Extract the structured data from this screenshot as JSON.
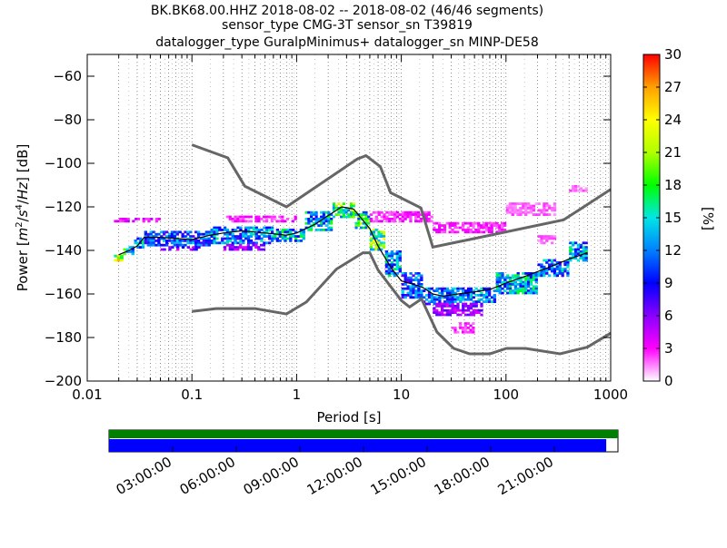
{
  "title_lines": [
    "BK.BK68.00.HHZ   2018-08-02 -- 2018-08-02  (46/46 segments)",
    "sensor_type CMG-3T sensor_sn T39819",
    "datalogger_type GuralpMinimus+ datalogger_sn MINP-DE58"
  ],
  "chart_data": {
    "type": "heatmap",
    "xlabel": "Period [s]",
    "ylabel": "Power [m²/s⁴/Hz] [dB]",
    "ylabel_parts": {
      "prefix": "Power [",
      "unit_m": "m",
      "exp_m": "2",
      "slash1": "/",
      "unit_s": "s",
      "exp_s": "4",
      "slash2": "/",
      "unit_hz": "Hz",
      "suffix": "] [dB]"
    },
    "x_scale": "log",
    "xlim": [
      0.01,
      1000
    ],
    "ylim": [
      -200,
      -50
    ],
    "x_ticks": [
      {
        "value": 0.01,
        "label": "0.01"
      },
      {
        "value": 0.1,
        "label": "0.1"
      },
      {
        "value": 1,
        "label": "1"
      },
      {
        "value": 10,
        "label": "10"
      },
      {
        "value": 100,
        "label": "100"
      },
      {
        "value": 1000,
        "label": "1000"
      }
    ],
    "y_ticks": [
      {
        "value": -60,
        "label": "−60"
      },
      {
        "value": -80,
        "label": "−80"
      },
      {
        "value": -100,
        "label": "−100"
      },
      {
        "value": -120,
        "label": "−120"
      },
      {
        "value": -140,
        "label": "−140"
      },
      {
        "value": -160,
        "label": "−160"
      },
      {
        "value": -180,
        "label": "−180"
      },
      {
        "value": -200,
        "label": "−200"
      }
    ],
    "grid": "dotted vertical at period bins",
    "colorbar": {
      "label": "[%]",
      "range": [
        0,
        30
      ],
      "ticks": [
        {
          "value": 0,
          "label": "0"
        },
        {
          "value": 3,
          "label": "3"
        },
        {
          "value": 6,
          "label": "6"
        },
        {
          "value": 9,
          "label": "9"
        },
        {
          "value": 12,
          "label": "12"
        },
        {
          "value": 15,
          "label": "15"
        },
        {
          "value": 18,
          "label": "18"
        },
        {
          "value": 21,
          "label": "21"
        },
        {
          "value": 24,
          "label": "24"
        },
        {
          "value": 27,
          "label": "27"
        },
        {
          "value": 30,
          "label": "30"
        }
      ],
      "colors": [
        "#ffffff",
        "#ff00ff",
        "#8a00ff",
        "#0000ff",
        "#0080ff",
        "#00e6e6",
        "#00ff00",
        "#b0ff00",
        "#ffff00",
        "#ffa000",
        "#ff0000"
      ]
    },
    "noise_model_high": [
      [
        0.1,
        -91.5
      ],
      [
        0.22,
        -97.5
      ],
      [
        0.32,
        -110.5
      ],
      [
        0.8,
        -120
      ],
      [
        3.8,
        -98
      ],
      [
        4.6,
        -96.5
      ],
      [
        6.3,
        -101.5
      ],
      [
        7.9,
        -113.5
      ],
      [
        15.4,
        -120.5
      ],
      [
        20,
        -138.5
      ],
      [
        354.8,
        -126
      ],
      [
        1000,
        -112
      ]
    ],
    "noise_model_low": [
      [
        0.1,
        -168
      ],
      [
        0.17,
        -166.7
      ],
      [
        0.4,
        -166.7
      ],
      [
        0.8,
        -169.2
      ],
      [
        1.24,
        -163.7
      ],
      [
        2.4,
        -148.6
      ],
      [
        4.3,
        -141.1
      ],
      [
        5,
        -141.1
      ],
      [
        6,
        -149
      ],
      [
        10,
        -163
      ],
      [
        12,
        -166
      ],
      [
        15.6,
        -162.3
      ],
      [
        21.9,
        -177.5
      ],
      [
        31.6,
        -185
      ],
      [
        45,
        -187.5
      ],
      [
        70,
        -187.5
      ],
      [
        101,
        -185
      ],
      [
        154,
        -185
      ],
      [
        328,
        -187.5
      ],
      [
        600,
        -184.4
      ],
      [
        1000,
        -178
      ]
    ],
    "mode_curve": [
      [
        0.02,
        -142
      ],
      [
        0.025,
        -140
      ],
      [
        0.03,
        -138
      ],
      [
        0.035,
        -134
      ],
      [
        0.05,
        -134
      ],
      [
        0.1,
        -135
      ],
      [
        0.15,
        -133
      ],
      [
        0.2,
        -132
      ],
      [
        0.3,
        -131
      ],
      [
        0.5,
        -132
      ],
      [
        0.8,
        -133
      ],
      [
        1,
        -132
      ],
      [
        1.5,
        -128
      ],
      [
        2,
        -124
      ],
      [
        2.7,
        -120
      ],
      [
        3.5,
        -121
      ],
      [
        5,
        -130
      ],
      [
        6,
        -138
      ],
      [
        8,
        -148
      ],
      [
        10,
        -154
      ],
      [
        14,
        -156
      ],
      [
        16,
        -157
      ],
      [
        20,
        -160
      ],
      [
        25,
        -161
      ],
      [
        35,
        -160
      ],
      [
        50,
        -159
      ],
      [
        70,
        -158
      ],
      [
        100,
        -155
      ],
      [
        150,
        -152
      ],
      [
        250,
        -148
      ],
      [
        400,
        -144
      ],
      [
        600,
        -141
      ]
    ],
    "density_bands": [
      {
        "x": [
          0.018,
          0.022
        ],
        "y": [
          -146,
          -142
        ],
        "pct": 26
      },
      {
        "x": [
          0.022,
          0.028
        ],
        "y": [
          -142,
          -138
        ],
        "pct": 16
      },
      {
        "x": [
          0.028,
          0.035
        ],
        "y": [
          -139,
          -134
        ],
        "pct": 14
      },
      {
        "x": [
          0.018,
          0.05
        ],
        "y": [
          -127,
          -125
        ],
        "pct": 4
      },
      {
        "x": [
          0.035,
          0.15
        ],
        "y": [
          -138,
          -131
        ],
        "pct": 12
      },
      {
        "x": [
          0.05,
          0.12
        ],
        "y": [
          -140,
          -138
        ],
        "pct": 7
      },
      {
        "x": [
          0.15,
          0.6
        ],
        "y": [
          -137,
          -129
        ],
        "pct": 13
      },
      {
        "x": [
          0.2,
          0.5
        ],
        "y": [
          -140,
          -137
        ],
        "pct": 6
      },
      {
        "x": [
          0.6,
          1.2
        ],
        "y": [
          -136,
          -130
        ],
        "pct": 15
      },
      {
        "x": [
          0.2,
          1.0
        ],
        "y": [
          -127,
          -124
        ],
        "pct": 3
      },
      {
        "x": [
          1.2,
          2.2
        ],
        "y": [
          -131,
          -122
        ],
        "pct": 15
      },
      {
        "x": [
          2.2,
          3.6
        ],
        "y": [
          -125,
          -118
        ],
        "pct": 20
      },
      {
        "x": [
          3.6,
          5.0
        ],
        "y": [
          -130,
          -122
        ],
        "pct": 18
      },
      {
        "x": [
          5.0,
          7.0
        ],
        "y": [
          -140,
          -130
        ],
        "pct": 20
      },
      {
        "x": [
          7.0,
          10.0
        ],
        "y": [
          -152,
          -140
        ],
        "pct": 14
      },
      {
        "x": [
          10.0,
          16.0
        ],
        "y": [
          -162,
          -150
        ],
        "pct": 12
      },
      {
        "x": [
          16.0,
          30.0
        ],
        "y": [
          -165,
          -157
        ],
        "pct": 12
      },
      {
        "x": [
          20.0,
          60.0
        ],
        "y": [
          -170,
          -164
        ],
        "pct": 6
      },
      {
        "x": [
          30.0,
          80.0
        ],
        "y": [
          -164,
          -157
        ],
        "pct": 13
      },
      {
        "x": [
          80.0,
          200.0
        ],
        "y": [
          -160,
          -150
        ],
        "pct": 15
      },
      {
        "x": [
          200.0,
          400.0
        ],
        "y": [
          -152,
          -144
        ],
        "pct": 13
      },
      {
        "x": [
          400.0,
          600.0
        ],
        "y": [
          -145,
          -136
        ],
        "pct": 14
      },
      {
        "x": [
          5.0,
          20.0
        ],
        "y": [
          -127,
          -122
        ],
        "pct": 3
      },
      {
        "x": [
          20.0,
          100.0
        ],
        "y": [
          -132,
          -127
        ],
        "pct": 3
      },
      {
        "x": [
          100.0,
          300.0
        ],
        "y": [
          -124,
          -118
        ],
        "pct": 2
      },
      {
        "x": [
          400.0,
          600.0
        ],
        "y": [
          -113,
          -110
        ],
        "pct": 2
      },
      {
        "x": [
          30.0,
          50.0
        ],
        "y": [
          -178,
          -173
        ],
        "pct": 3
      },
      {
        "x": [
          200.0,
          300.0
        ],
        "y": [
          -137,
          -133
        ],
        "pct": 2
      }
    ]
  },
  "timeline": {
    "top_color": "#008000",
    "fill_color": "#0000ff",
    "coverage_fraction": 0.977,
    "tick_labels": [
      "03:00:00",
      "06:00:00",
      "09:00:00",
      "12:00:00",
      "15:00:00",
      "18:00:00",
      "21:00:00"
    ],
    "tick_hours": [
      3,
      6,
      9,
      12,
      15,
      18,
      21
    ],
    "span_hours": 24
  }
}
